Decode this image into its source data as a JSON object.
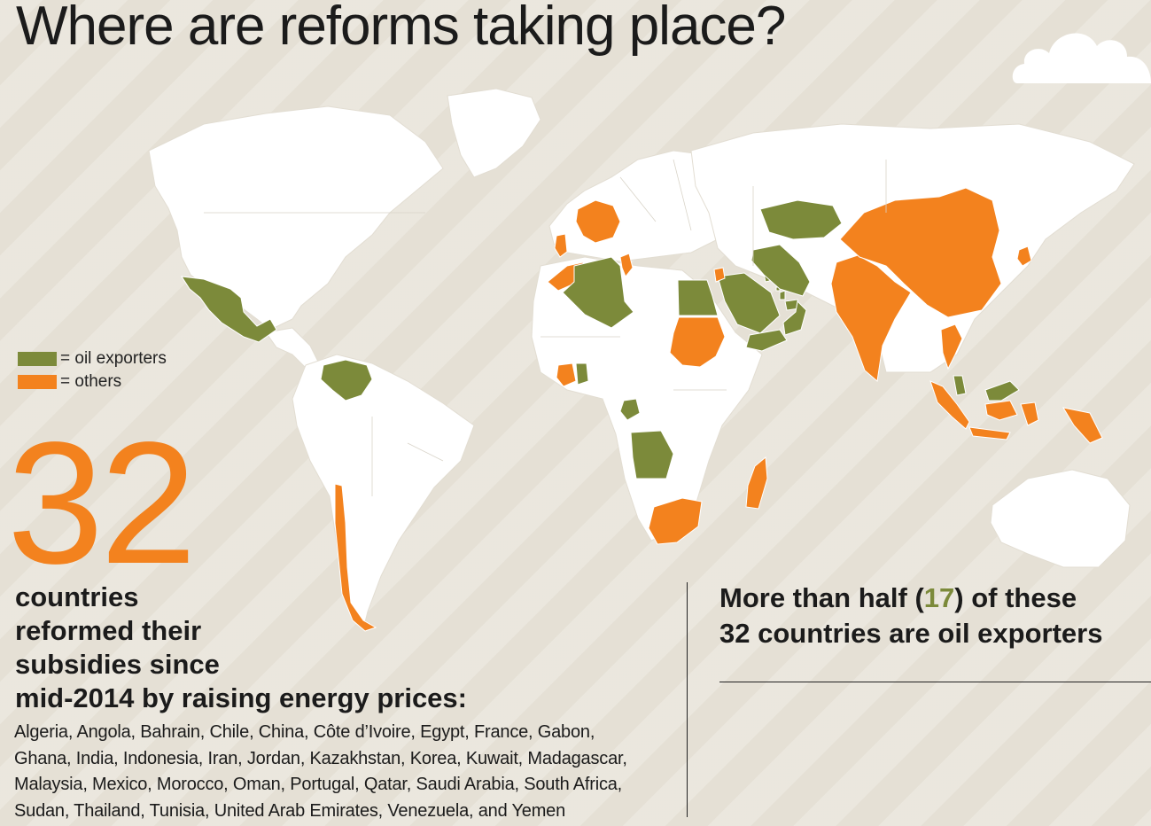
{
  "title": "Where are reforms taking place?",
  "legend": {
    "oil_exporters": "= oil exporters",
    "others": "= others"
  },
  "colors": {
    "oil_exporters": "#7c8a3a",
    "others": "#f3821e",
    "land": "#ffffff",
    "background": "#e5e0d5"
  },
  "highlight": {
    "number": "32",
    "headline_lines": [
      "countries",
      "reformed their",
      "subsidies since",
      "mid-2014 by raising energy prices:"
    ],
    "country_list_lines": [
      "Algeria, Angola, Bahrain, Chile, China, Côte d’Ivoire, Egypt, France, Gabon,",
      "Ghana, India, Indonesia, Iran, Jordan, Kazakhstan, Korea, Kuwait, Madagascar,",
      "Malaysia, Mexico, Morocco, Oman, Portugal, Qatar, Saudi Arabia, South Africa,",
      "Sudan, Thailand, Tunisia, United Arab Emirates, Venezuela, and Yemen"
    ]
  },
  "fact": {
    "line1_prefix": "More than half (",
    "line1_number": "17",
    "line1_suffix": ") of these",
    "line2": "32 countries are oil exporters"
  },
  "map": {
    "oil_exporters": [
      "Mexico",
      "Venezuela",
      "Algeria",
      "Egypt",
      "Saudi Arabia",
      "Iran",
      "Oman",
      "Ghana",
      "Gabon",
      "Angola",
      "Malaysia",
      "Kazakhstan",
      "Kuwait",
      "Qatar",
      "Bahrain",
      "United Arab Emirates",
      "Yemen"
    ],
    "others": [
      "France",
      "Portugal",
      "Morocco",
      "Tunisia",
      "Sudan",
      "Côte d’Ivoire",
      "South Africa",
      "Madagascar",
      "India",
      "China",
      "Korea",
      "Thailand",
      "Indonesia",
      "Chile",
      "Jordan"
    ]
  }
}
